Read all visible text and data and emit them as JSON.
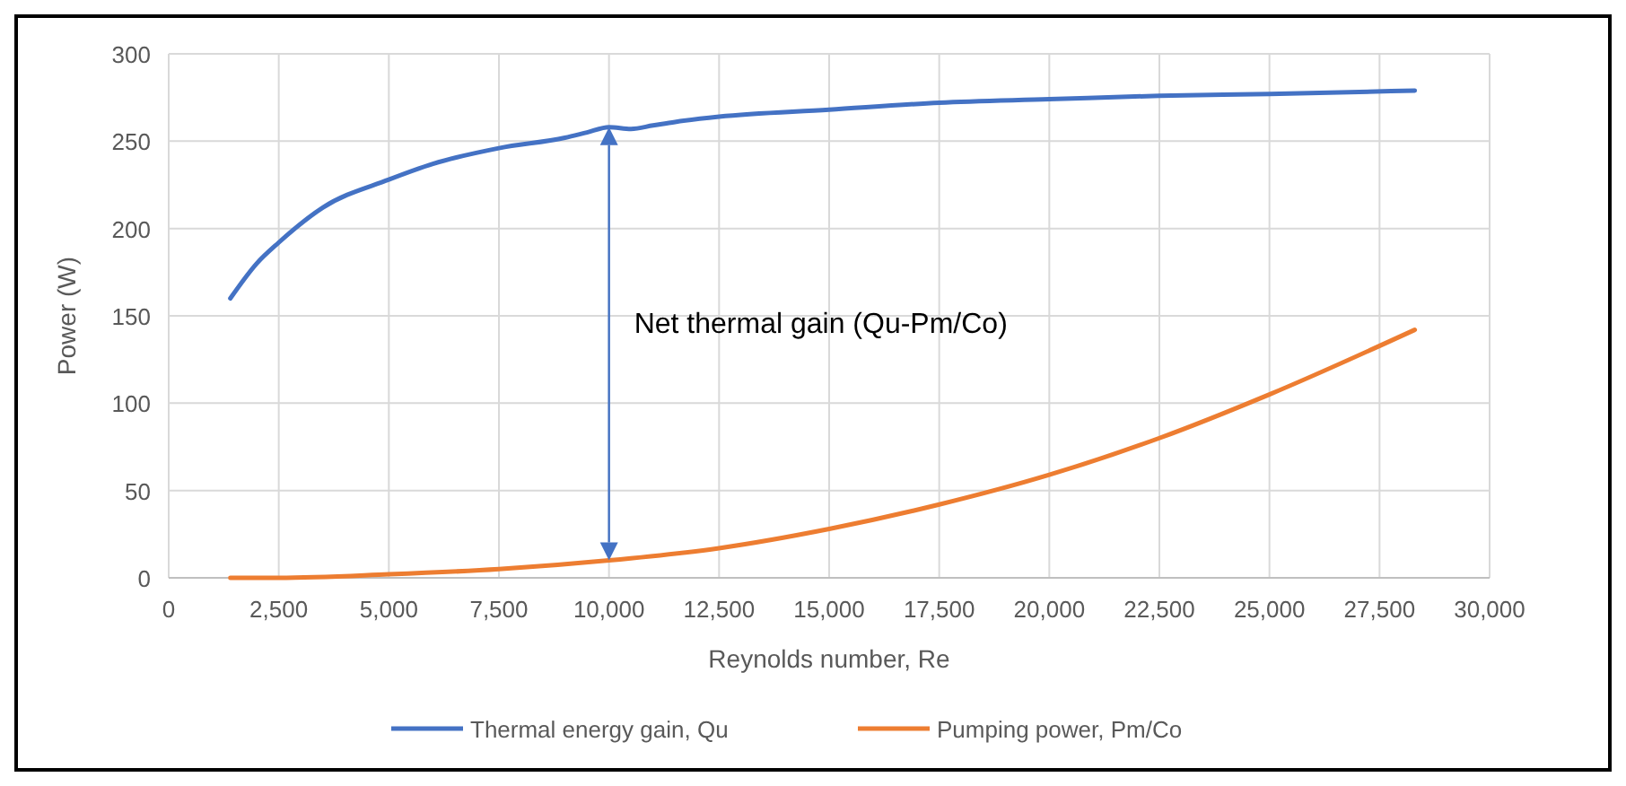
{
  "chart_data": {
    "type": "line",
    "xlabel": "Reynolds number, Re",
    "ylabel": "Power (W)",
    "xlim": [
      0,
      30000
    ],
    "xticks": [
      {
        "value": 0,
        "label": "0"
      },
      {
        "value": 2500,
        "label": "2,500"
      },
      {
        "value": 5000,
        "label": "5,000"
      },
      {
        "value": 7500,
        "label": "7,500"
      },
      {
        "value": 10000,
        "label": "10,000"
      },
      {
        "value": 12500,
        "label": "12,500"
      },
      {
        "value": 15000,
        "label": "15,000"
      },
      {
        "value": 17500,
        "label": "17,500"
      },
      {
        "value": 20000,
        "label": "20,000"
      },
      {
        "value": 22500,
        "label": "22,500"
      },
      {
        "value": 25000,
        "label": "25,000"
      },
      {
        "value": 27500,
        "label": "27,500"
      },
      {
        "value": 30000,
        "label": "30,000"
      }
    ],
    "ylim": [
      0,
      300
    ],
    "yticks": [
      0,
      50,
      100,
      150,
      200,
      250,
      300
    ],
    "grid": true,
    "legend": "bottom",
    "marker": "none",
    "line_style": "solid",
    "annotations": [
      "Net thermal gain (Qu-Pm/Co)"
    ],
    "series": [
      {
        "name": "Thermal energy gain, Qu",
        "color": "#4472c4",
        "x": [
          1400,
          2000,
          2500,
          3500,
          5000,
          6000,
          7500,
          9000,
          9500,
          10000,
          10500,
          11000,
          11500,
          12500,
          15000,
          17500,
          20000,
          22500,
          25000,
          28300
        ],
        "values": [
          160,
          180,
          192,
          212,
          228,
          237,
          246,
          252,
          255,
          258,
          257,
          259,
          261,
          264,
          268,
          272,
          274,
          276,
          277,
          279
        ]
      },
      {
        "name": "Pumping power, Pm/Co",
        "color": "#ed7d31",
        "x": [
          1400,
          2500,
          5000,
          7500,
          10000,
          12500,
          15000,
          17500,
          20000,
          22500,
          25000,
          28300
        ],
        "values": [
          0,
          0,
          2,
          5,
          10,
          17,
          28,
          42,
          59,
          80,
          105,
          142
        ]
      }
    ]
  }
}
